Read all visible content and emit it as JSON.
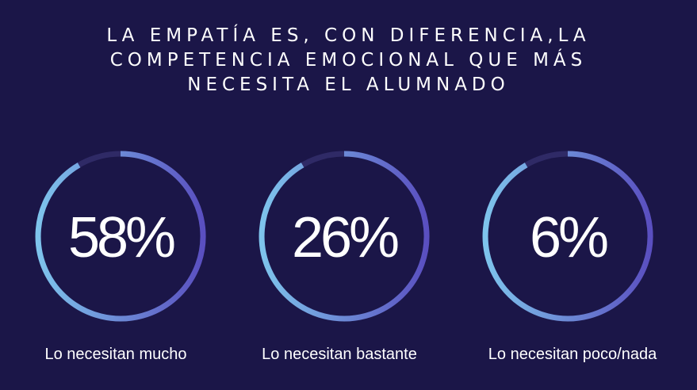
{
  "title": {
    "lines": [
      "LA EMPATÍA ES, CON DIFERENCIA,LA",
      "COMPETENCIA EMOCIONAL QUE MÁS",
      "NECESITA EL ALUMNADO"
    ]
  },
  "colors": {
    "background": "#1b1648",
    "ring_start": "#7ec4ec",
    "ring_end": "#5a4fc0",
    "ring_track": "#2f2a66"
  },
  "chart_data": [
    {
      "type": "pie",
      "title": "",
      "values": [
        58
      ],
      "value_label": "58%",
      "category": "Lo necesitan mucho"
    },
    {
      "type": "pie",
      "title": "",
      "values": [
        26
      ],
      "value_label": "26%",
      "category": "Lo necesitan bastante"
    },
    {
      "type": "pie",
      "title": "",
      "values": [
        6
      ],
      "value_label": "6%",
      "category": "Lo necesitan poco/nada"
    }
  ]
}
